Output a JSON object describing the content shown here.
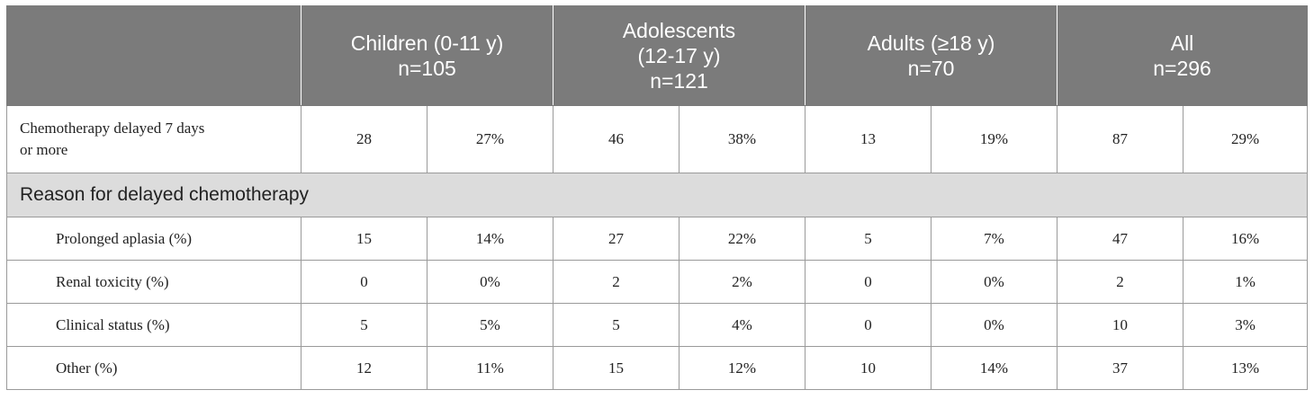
{
  "table": {
    "header": {
      "corner": "",
      "groups": [
        {
          "lines": [
            "Children (0-11 y)",
            "n=105"
          ]
        },
        {
          "lines": [
            "Adolescents",
            "(12-17 y)",
            "n=121"
          ]
        },
        {
          "lines": [
            "Adults (≥18 y)",
            "n=70"
          ]
        },
        {
          "lines": [
            "All",
            "n=296"
          ]
        }
      ]
    },
    "main_row": {
      "label_line1": "Chemotherapy delayed 7 days",
      "label_line2": "or more",
      "values": [
        "28",
        "27%",
        "46",
        "38%",
        "13",
        "19%",
        "87",
        "29%"
      ]
    },
    "section_label": "Reason for delayed chemotherapy",
    "sub_rows": [
      {
        "label": "Prolonged aplasia (%)",
        "values": [
          "15",
          "14%",
          "27",
          "22%",
          "5",
          "7%",
          "47",
          "16%"
        ]
      },
      {
        "label": "Renal toxicity (%)",
        "values": [
          "0",
          "0%",
          "2",
          "2%",
          "0",
          "0%",
          "2",
          "1%"
        ]
      },
      {
        "label": "Clinical status (%)",
        "values": [
          "5",
          "5%",
          "5",
          "4%",
          "0",
          "0%",
          "10",
          "3%"
        ]
      },
      {
        "label": "Other (%)",
        "values": [
          "12",
          "11%",
          "15",
          "12%",
          "10",
          "14%",
          "37",
          "13%"
        ]
      }
    ]
  }
}
